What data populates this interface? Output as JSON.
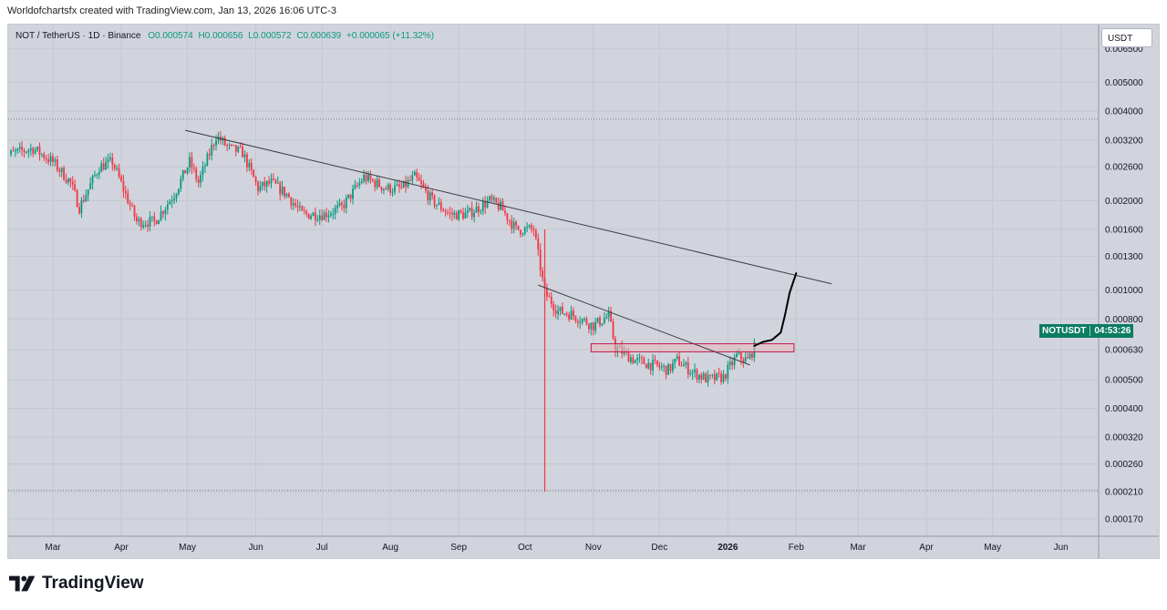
{
  "header": {
    "caption": "Worldofchartsfx created with TradingView.com, Jan 13, 2026 16:06 UTC-3"
  },
  "legend": {
    "symbol": "NOT / TetherUS · 1D · Binance",
    "open": "O0.000574",
    "high": "H0.000656",
    "low": "L0.000572",
    "close": "C0.000639",
    "change": "+0.000065 (+11.32%)"
  },
  "currency": "USDT",
  "price_tag": {
    "symbol": "NOTUSDT",
    "countdown": "04:53:26"
  },
  "footer": {
    "brand": "TradingView"
  },
  "colors": {
    "up": "#089981",
    "down": "#f23645",
    "background": "#d1d4dc",
    "trendline": "#3a3d46",
    "zone_fill": "#e9b8bd",
    "zone_border": "#c2184f",
    "projection": "#000000"
  },
  "icons": {
    "logo": "tradingview-logo-icon"
  },
  "chart_data": {
    "type": "candlestick",
    "scale": "log",
    "ylim": [
      0.000155,
      0.0075
    ],
    "y_ticks": [
      "0.006500",
      "0.005000",
      "0.004000",
      "0.003200",
      "0.002600",
      "0.002000",
      "0.001600",
      "0.001300",
      "0.001000",
      "0.000800",
      "0.000630",
      "0.000500",
      "0.000400",
      "0.000320",
      "0.000260",
      "0.000210",
      "0.000170"
    ],
    "x_ticks": [
      "Mar",
      "Apr",
      "May",
      "Jun",
      "Jul",
      "Aug",
      "Sep",
      "Oct",
      "Nov",
      "Dec",
      "2026",
      "Feb",
      "Mar",
      "Apr",
      "May",
      "Jun"
    ],
    "x_tick_dates": [
      "2025-03-01",
      "2025-04-01",
      "2025-05-01",
      "2025-06-01",
      "2025-07-01",
      "2025-08-01",
      "2025-09-01",
      "2025-10-01",
      "2025-11-01",
      "2025-12-01",
      "2026-01-01",
      "2026-02-01",
      "2026-03-01",
      "2026-04-01",
      "2026-05-01",
      "2026-06-01"
    ],
    "price_anchors": [
      [
        "2025-02-06",
        0.0028
      ],
      [
        "2025-02-12",
        0.0029
      ],
      [
        "2025-02-20",
        0.003
      ],
      [
        "2025-03-01",
        0.0027
      ],
      [
        "2025-03-09",
        0.0023
      ],
      [
        "2025-03-13",
        0.0019
      ],
      [
        "2025-03-22",
        0.0026
      ],
      [
        "2025-03-28",
        0.0027
      ],
      [
        "2025-04-08",
        0.0017
      ],
      [
        "2025-04-16",
        0.0017
      ],
      [
        "2025-04-25",
        0.0021
      ],
      [
        "2025-05-02",
        0.0027
      ],
      [
        "2025-05-06",
        0.0023
      ],
      [
        "2025-05-14",
        0.0033
      ],
      [
        "2025-05-20",
        0.003
      ],
      [
        "2025-05-26",
        0.0029
      ],
      [
        "2025-06-02",
        0.0022
      ],
      [
        "2025-06-08",
        0.0023
      ],
      [
        "2025-06-15",
        0.0021
      ],
      [
        "2025-06-22",
        0.0018
      ],
      [
        "2025-07-02",
        0.0018
      ],
      [
        "2025-07-10",
        0.0019
      ],
      [
        "2025-07-20",
        0.0024
      ],
      [
        "2025-07-30",
        0.0022
      ],
      [
        "2025-08-06",
        0.0022
      ],
      [
        "2025-08-12",
        0.0024
      ],
      [
        "2025-08-20",
        0.002
      ],
      [
        "2025-08-28",
        0.0018
      ],
      [
        "2025-09-05",
        0.0018
      ],
      [
        "2025-09-15",
        0.002
      ],
      [
        "2025-09-20",
        0.0019
      ],
      [
        "2025-09-27",
        0.0016
      ],
      [
        "2025-10-05",
        0.0016
      ],
      [
        "2025-10-10",
        0.00098
      ],
      [
        "2025-10-16",
        0.00085
      ],
      [
        "2025-10-22",
        0.00083
      ],
      [
        "2025-11-01",
        0.00076
      ],
      [
        "2025-11-08",
        0.00082
      ],
      [
        "2025-11-11",
        0.00064
      ],
      [
        "2025-11-20",
        0.00058
      ],
      [
        "2025-11-28",
        0.00056
      ],
      [
        "2025-12-05",
        0.00054
      ],
      [
        "2025-12-09",
        0.00058
      ],
      [
        "2025-12-16",
        0.00053
      ],
      [
        "2025-12-23",
        0.0005
      ],
      [
        "2025-12-30",
        0.00051
      ],
      [
        "2026-01-05",
        0.0006
      ],
      [
        "2026-01-10",
        0.00058
      ],
      [
        "2026-01-13",
        0.00064
      ]
    ],
    "wick_spikes": [
      {
        "date": "2025-10-10",
        "low": 0.00021,
        "high": 0.0016
      }
    ],
    "annotations": {
      "upper_trendline": {
        "from": [
          "2025-04-30",
          0.00345
        ],
        "to": [
          "2026-02-17",
          0.00105
        ]
      },
      "lower_trendline": {
        "from": [
          "2025-10-07",
          0.00104
        ],
        "to": [
          "2026-01-11",
          0.00056
        ]
      },
      "resistance_zone": {
        "from": "2025-10-31",
        "to": "2026-01-31",
        "top": 0.00066,
        "bottom": 0.00062
      },
      "dotted_levels": [
        0.00376,
        0.000212
      ],
      "projection_path": [
        [
          "2026-01-13",
          0.00065
        ],
        [
          "2026-01-17",
          0.00067
        ],
        [
          "2026-01-21",
          0.00068
        ],
        [
          "2026-01-25",
          0.00072
        ],
        [
          "2026-01-27",
          0.00083
        ],
        [
          "2026-01-29",
          0.00098
        ],
        [
          "2026-02-01",
          0.00114
        ]
      ]
    }
  }
}
